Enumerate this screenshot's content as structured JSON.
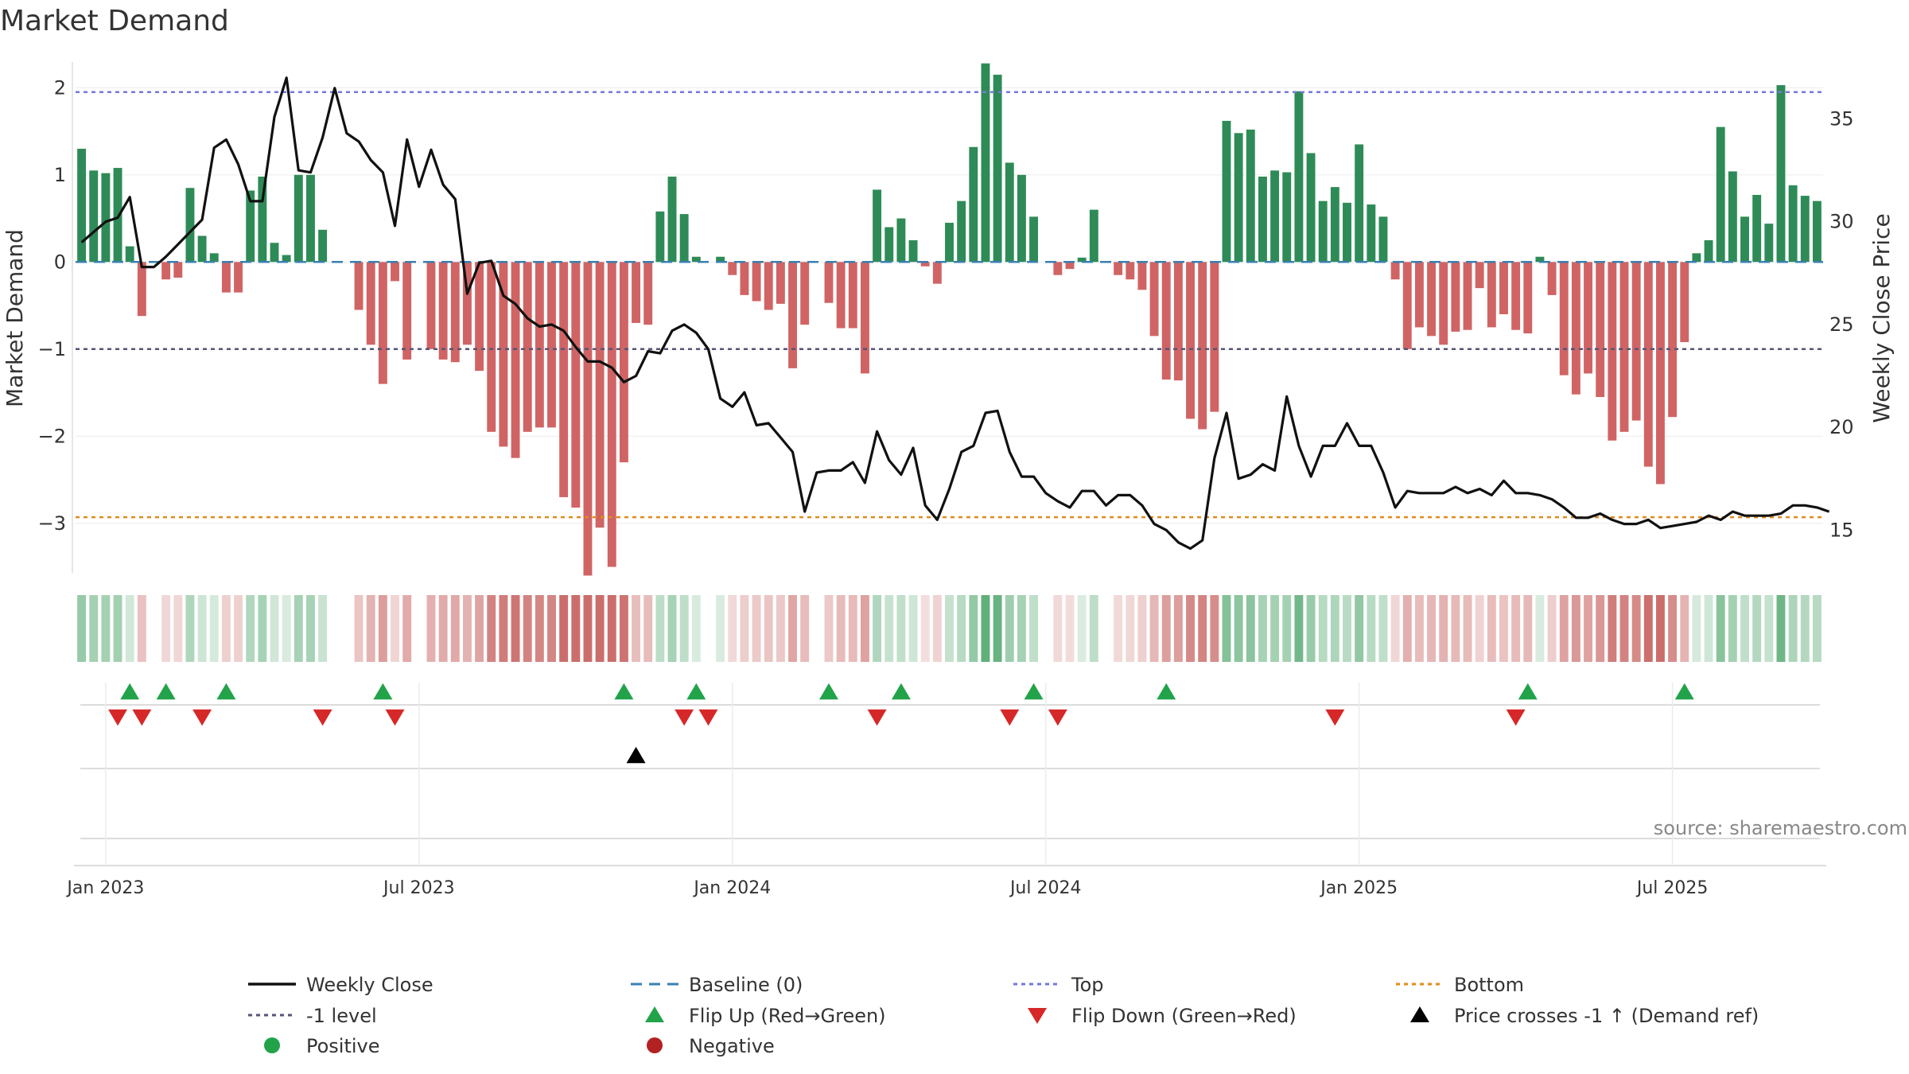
{
  "chart_data": {
    "type": "bar",
    "title": "Market Demand",
    "ylabel_left": "Market Demand",
    "ylabel_right": "Weekly Close Price",
    "ylim_left": [
      -3.55,
      2.35
    ],
    "ylim_right": [
      13,
      38
    ],
    "y_ticks_left": [
      2,
      1,
      0,
      -1,
      -2,
      -3
    ],
    "y_tick_labels_left": [
      "2",
      "1",
      "0",
      "−1",
      "−2",
      "−3"
    ],
    "y_ticks_right": [
      35,
      30,
      25,
      20,
      15
    ],
    "y_tick_labels_right": [
      "35",
      "30",
      "25",
      "20",
      "15"
    ],
    "x_ticks": [
      {
        "label": "Jan 2023",
        "week": 2
      },
      {
        "label": "Jul 2023",
        "week": 28
      },
      {
        "label": "Jan 2024",
        "week": 54
      },
      {
        "label": "Jul 2024",
        "week": 80
      },
      {
        "label": "Jan 2025",
        "week": 106
      },
      {
        "label": "Jul 2025",
        "week": 132
      }
    ],
    "levels": {
      "top": 1.95,
      "minus_one": -1.0,
      "bottom": -2.93,
      "baseline": 0
    },
    "colors": {
      "positive": "#2e8b57",
      "negative": "#cd5c5c",
      "line": "#111111",
      "top": "#7777dd",
      "minus_one": "#555577",
      "bottom": "#e08a1c",
      "baseline": "#3a80b0",
      "flip_up": "#22a34a",
      "flip_down": "#d62828",
      "cross": "#000000",
      "legend_positive": "#22a34a",
      "legend_negative": "#b22222"
    },
    "series": [
      {
        "name": "Market Demand",
        "values": [
          1.3,
          1.05,
          1.02,
          1.08,
          0.18,
          -0.62,
          0,
          -0.2,
          -0.18,
          0.85,
          0.3,
          0.1,
          -0.35,
          -0.35,
          0.82,
          0.98,
          0.22,
          0.08,
          1.0,
          1.0,
          0.37,
          0,
          0,
          -0.55,
          -0.95,
          -1.4,
          -0.22,
          -1.12,
          0,
          -1.0,
          -1.12,
          -1.15,
          -0.95,
          -1.25,
          -1.95,
          -2.12,
          -2.25,
          -1.95,
          -1.9,
          -1.9,
          -2.7,
          -2.82,
          -3.6,
          -3.05,
          -3.5,
          -2.3,
          -0.7,
          -0.72,
          0.58,
          0.98,
          0.55,
          0.06,
          0,
          0.06,
          -0.15,
          -0.38,
          -0.45,
          -0.55,
          -0.48,
          -1.22,
          -0.72,
          0,
          -0.47,
          -0.76,
          -0.76,
          -1.28,
          0.83,
          0.4,
          0.5,
          0.25,
          -0.05,
          -0.25,
          0.45,
          0.7,
          1.32,
          2.28,
          2.15,
          1.14,
          1.0,
          0.52,
          0,
          -0.15,
          -0.08,
          0.05,
          0.6,
          0,
          -0.15,
          -0.2,
          -0.32,
          -0.85,
          -1.35,
          -1.36,
          -1.8,
          -1.92,
          -1.72,
          1.62,
          1.48,
          1.52,
          0.98,
          1.05,
          1.03,
          1.96,
          1.25,
          0.7,
          0.86,
          0.68,
          1.35,
          0.66,
          0.52,
          -0.2,
          -1.0,
          -0.75,
          -0.85,
          -0.95,
          -0.8,
          -0.78,
          -0.3,
          -0.75,
          -0.6,
          -0.78,
          -0.82,
          0.06,
          -0.38,
          -1.3,
          -1.52,
          -1.28,
          -1.55,
          -2.05,
          -1.95,
          -1.82,
          -2.35,
          -2.55,
          -1.78,
          -0.92,
          0.1,
          0.25,
          1.55,
          1.04,
          0.52,
          0.77,
          0.44,
          2.03,
          0.88,
          0.76,
          0.7
        ]
      },
      {
        "name": "Weekly Close",
        "values": [
          29,
          29.5,
          30,
          30.2,
          31.2,
          27.8,
          27.8,
          28.3,
          28.9,
          29.5,
          30.1,
          33.6,
          34,
          32.8,
          31,
          31,
          35.1,
          37,
          32.5,
          32.4,
          34.1,
          36.5,
          34.3,
          33.9,
          33,
          32.4,
          29.8,
          34,
          31.7,
          33.5,
          31.8,
          31.1,
          26.5,
          28,
          28.1,
          26.4,
          26,
          25.3,
          24.9,
          25,
          24.7,
          23.9,
          23.2,
          23.2,
          22.9,
          22.2,
          22.5,
          23.7,
          23.6,
          24.7,
          25,
          24.6,
          23.8,
          21.4,
          21,
          21.7,
          20.1,
          20.2,
          19.5,
          18.8,
          15.9,
          17.8,
          17.9,
          17.9,
          18.3,
          17.3,
          19.8,
          18.4,
          17.7,
          19,
          16.2,
          15.5,
          17,
          18.8,
          19.1,
          20.7,
          20.8,
          18.8,
          17.6,
          17.6,
          16.8,
          16.4,
          16.1,
          16.9,
          16.9,
          16.2,
          16.7,
          16.7,
          16.2,
          15.3,
          15,
          14.4,
          14.1,
          14.5,
          18.5,
          20.7,
          17.5,
          17.7,
          18.2,
          17.9,
          21.5,
          19.1,
          17.6,
          19.1,
          19.1,
          20.2,
          19.1,
          19.1,
          17.8,
          16.1,
          16.9,
          16.8,
          16.8,
          16.8,
          17.1,
          16.8,
          17,
          16.7,
          17.4,
          16.8,
          16.8,
          16.7,
          16.5,
          16.1,
          15.6,
          15.6,
          15.8,
          15.5,
          15.3,
          15.3,
          15.5,
          15.1,
          15.2,
          15.3,
          15.4,
          15.7,
          15.5,
          15.9,
          15.7,
          15.7,
          15.7,
          15.8,
          16.2,
          16.2,
          16.1,
          15.9
        ]
      }
    ],
    "flip_up_weeks": [
      4,
      7,
      12,
      25,
      45,
      51,
      62,
      68,
      79,
      90,
      120,
      133
    ],
    "flip_down_weeks": [
      3,
      5,
      10,
      20,
      26,
      50,
      52,
      66,
      77,
      81,
      104,
      119
    ],
    "cross_weeks": [
      46
    ],
    "annotation": "source: sharemaestro.com",
    "legend": [
      {
        "label": "Weekly Close",
        "kind": "line-solid",
        "color": "#111111"
      },
      {
        "label": "Baseline (0)",
        "kind": "line-dash",
        "color": "#3a80b0"
      },
      {
        "label": "Top",
        "kind": "line-dot",
        "color": "#7777dd"
      },
      {
        "label": "Bottom",
        "kind": "line-dot",
        "color": "#e08a1c"
      },
      {
        "label": "-1 level",
        "kind": "line-dot",
        "color": "#555577"
      },
      {
        "label": "Flip Up (Red→Green)",
        "kind": "tri-up",
        "color": "#22a34a"
      },
      {
        "label": "Flip Down (Green→Red)",
        "kind": "tri-down",
        "color": "#d62828"
      },
      {
        "label": "Price crosses -1 ↑ (Demand ref)",
        "kind": "tri-up",
        "color": "#000000"
      },
      {
        "label": "Positive",
        "kind": "dot",
        "color": "#22a34a"
      },
      {
        "label": "Negative",
        "kind": "dot",
        "color": "#b22222"
      }
    ]
  }
}
